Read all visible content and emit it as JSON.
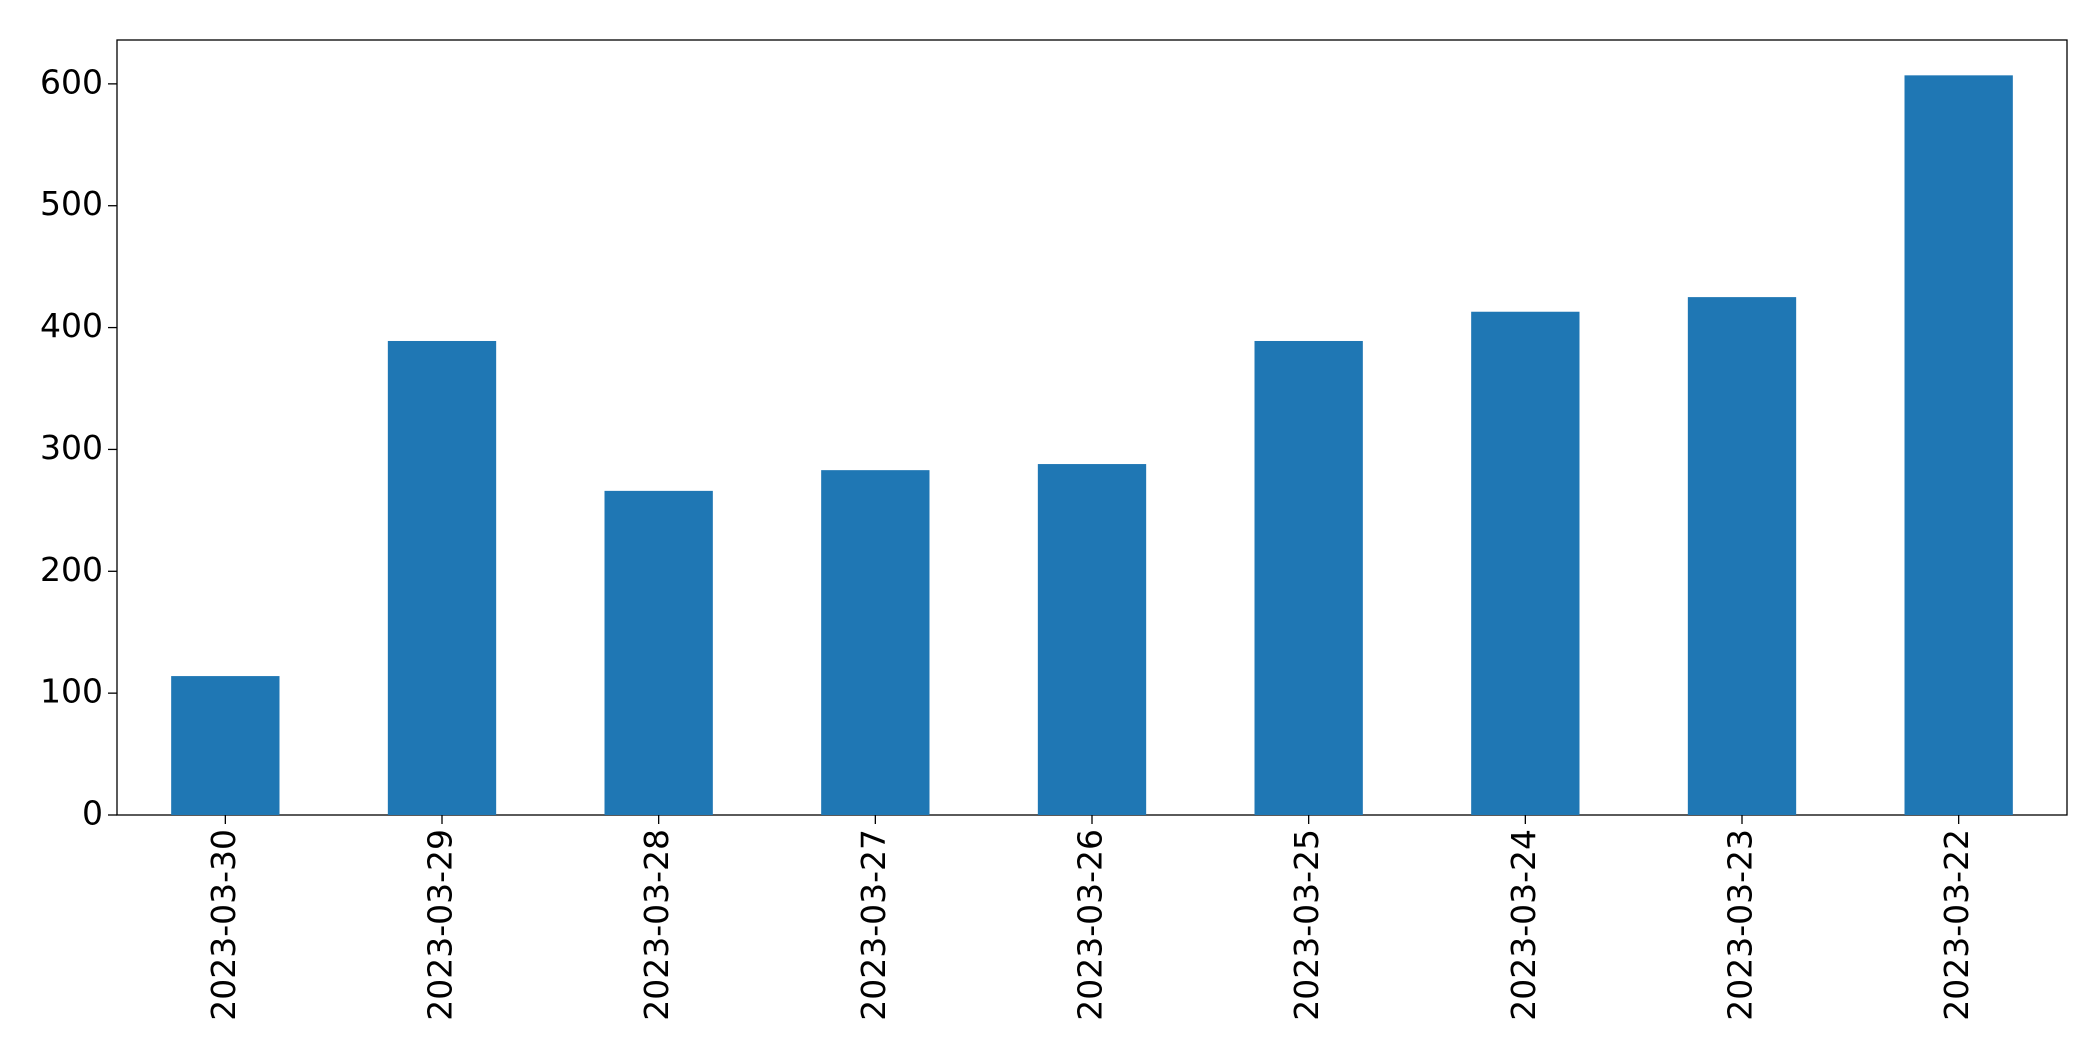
{
  "chart_data": {
    "type": "bar",
    "categories": [
      "2023-03-30",
      "2023-03-29",
      "2023-03-28",
      "2023-03-27",
      "2023-03-26",
      "2023-03-25",
      "2023-03-24",
      "2023-03-23",
      "2023-03-22"
    ],
    "values": [
      114,
      389,
      266,
      283,
      288,
      389,
      413,
      425,
      607
    ],
    "color": "#1f77b4",
    "ylim": [
      0,
      636
    ],
    "yticks": [
      0,
      100,
      200,
      300,
      400,
      500,
      600
    ],
    "grid": false
  }
}
